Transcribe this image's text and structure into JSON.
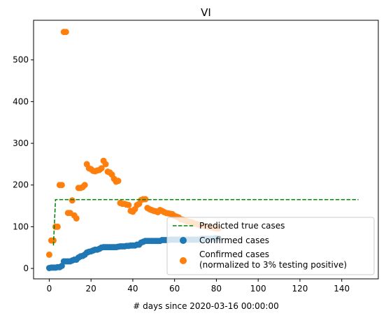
{
  "chart_data": {
    "type": "scatter",
    "title": "VI",
    "xlabel": "# days since 2020-03-16 00:00:00",
    "ylabel": "",
    "xlim": [
      -7.5,
      157.5
    ],
    "ylim": [
      -25,
      595
    ],
    "x_ticks": [
      0,
      20,
      40,
      60,
      80,
      100,
      120,
      140
    ],
    "y_ticks": [
      0,
      100,
      200,
      300,
      400,
      500
    ],
    "grid": false,
    "legend_position": "lower-right",
    "series": [
      {
        "name": "Predicted true cases",
        "kind": "line",
        "style": "dashed",
        "color": "#008000",
        "points": [
          [
            2,
            55
          ],
          [
            3,
            165
          ],
          [
            148,
            165
          ]
        ]
      },
      {
        "name": "Confirmed cases",
        "kind": "scatter",
        "color": "#1f77b4",
        "points": [
          [
            0,
            1
          ],
          [
            1,
            2
          ],
          [
            2,
            2
          ],
          [
            3,
            2
          ],
          [
            4,
            3
          ],
          [
            5,
            3
          ],
          [
            6,
            6
          ],
          [
            7,
            17
          ],
          [
            8,
            17
          ],
          [
            9,
            17
          ],
          [
            10,
            17
          ],
          [
            11,
            19
          ],
          [
            12,
            21
          ],
          [
            13,
            21
          ],
          [
            14,
            26
          ],
          [
            15,
            29
          ],
          [
            16,
            30
          ],
          [
            17,
            33
          ],
          [
            18,
            38
          ],
          [
            19,
            40
          ],
          [
            20,
            41
          ],
          [
            21,
            43
          ],
          [
            22,
            45
          ],
          [
            23,
            45
          ],
          [
            24,
            47
          ],
          [
            25,
            50
          ],
          [
            26,
            51
          ],
          [
            27,
            51
          ],
          [
            28,
            51
          ],
          [
            29,
            51
          ],
          [
            30,
            51
          ],
          [
            31,
            51
          ],
          [
            32,
            51
          ],
          [
            33,
            52
          ],
          [
            34,
            53
          ],
          [
            35,
            53
          ],
          [
            36,
            53
          ],
          [
            37,
            54
          ],
          [
            38,
            54
          ],
          [
            39,
            55
          ],
          [
            40,
            55
          ],
          [
            41,
            55
          ],
          [
            42,
            57
          ],
          [
            43,
            57
          ],
          [
            44,
            62
          ],
          [
            45,
            64
          ],
          [
            46,
            66
          ],
          [
            47,
            66
          ],
          [
            48,
            66
          ],
          [
            49,
            66
          ],
          [
            50,
            66
          ],
          [
            51,
            66
          ],
          [
            52,
            66
          ],
          [
            53,
            66
          ],
          [
            54,
            68
          ],
          [
            55,
            68
          ],
          [
            56,
            68
          ],
          [
            57,
            68
          ],
          [
            58,
            69
          ],
          [
            59,
            69
          ],
          [
            60,
            69
          ],
          [
            61,
            69
          ],
          [
            62,
            69
          ],
          [
            63,
            69
          ],
          [
            64,
            69
          ],
          [
            65,
            69
          ],
          [
            66,
            69
          ],
          [
            67,
            69
          ],
          [
            68,
            69
          ],
          [
            69,
            69
          ],
          [
            70,
            69
          ],
          [
            71,
            69
          ],
          [
            72,
            69
          ],
          [
            73,
            71
          ],
          [
            74,
            71
          ],
          [
            75,
            71
          ],
          [
            76,
            71
          ],
          [
            77,
            71
          ],
          [
            78,
            71
          ],
          [
            79,
            72
          ],
          [
            80,
            72
          ],
          [
            81,
            72
          ]
        ]
      },
      {
        "name": "Confirmed cases\n(normalized to 3% testing positive)",
        "kind": "scatter",
        "color": "#ff7f0e",
        "points": [
          [
            0,
            33
          ],
          [
            1,
            67
          ],
          [
            2,
            67
          ],
          [
            3,
            100
          ],
          [
            4,
            100
          ],
          [
            5,
            200
          ],
          [
            6,
            200
          ],
          [
            7,
            567
          ],
          [
            8,
            567
          ],
          [
            9,
            133
          ],
          [
            10,
            133
          ],
          [
            11,
            163
          ],
          [
            12,
            127
          ],
          [
            13,
            120
          ],
          [
            14,
            193
          ],
          [
            15,
            193
          ],
          [
            16,
            195
          ],
          [
            17,
            200
          ],
          [
            18,
            250
          ],
          [
            19,
            240
          ],
          [
            20,
            238
          ],
          [
            21,
            234
          ],
          [
            22,
            233
          ],
          [
            23,
            235
          ],
          [
            24,
            236
          ],
          [
            25,
            240
          ],
          [
            26,
            258
          ],
          [
            27,
            250
          ],
          [
            28,
            232
          ],
          [
            29,
            230
          ],
          [
            30,
            225
          ],
          [
            31,
            215
          ],
          [
            32,
            208
          ],
          [
            33,
            210
          ],
          [
            34,
            157
          ],
          [
            35,
            155
          ],
          [
            36,
            155
          ],
          [
            37,
            153
          ],
          [
            38,
            152
          ],
          [
            39,
            138
          ],
          [
            40,
            136
          ],
          [
            41,
            142
          ],
          [
            42,
            152
          ],
          [
            43,
            155
          ],
          [
            44,
            164
          ],
          [
            45,
            166
          ],
          [
            46,
            166
          ],
          [
            47,
            145
          ],
          [
            48,
            142
          ],
          [
            49,
            140
          ],
          [
            50,
            138
          ],
          [
            51,
            137
          ],
          [
            52,
            135
          ],
          [
            53,
            140
          ],
          [
            54,
            138
          ],
          [
            55,
            135
          ],
          [
            56,
            133
          ],
          [
            57,
            132
          ],
          [
            58,
            131
          ],
          [
            59,
            130
          ],
          [
            60,
            126
          ],
          [
            61,
            124
          ],
          [
            62,
            122
          ],
          [
            63,
            118
          ],
          [
            64,
            117
          ],
          [
            65,
            115
          ],
          [
            66,
            113
          ],
          [
            67,
            112
          ],
          [
            68,
            111
          ],
          [
            69,
            109
          ],
          [
            70,
            107
          ],
          [
            71,
            106
          ],
          [
            72,
            104
          ],
          [
            73,
            103
          ],
          [
            74,
            102
          ],
          [
            75,
            101
          ],
          [
            76,
            100
          ],
          [
            77,
            99
          ],
          [
            78,
            98
          ],
          [
            79,
            97
          ],
          [
            80,
            96
          ],
          [
            81,
            96
          ]
        ]
      }
    ]
  }
}
